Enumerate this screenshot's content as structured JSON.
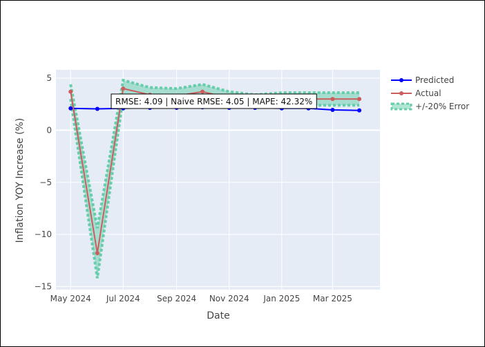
{
  "chart_data": {
    "type": "line",
    "title": "",
    "xlabel": "Date",
    "ylabel": "Inflation YOY Increase (%)",
    "x": [
      "2024-05-01",
      "2024-06-01",
      "2024-07-01",
      "2024-08-01",
      "2024-09-01",
      "2024-10-01",
      "2024-11-01",
      "2024-12-01",
      "2025-01-01",
      "2025-02-01",
      "2025-03-01",
      "2025-04-01"
    ],
    "xlim": [
      "2024-04-14",
      "2025-04-25"
    ],
    "ylim": [
      -15.3,
      5.8
    ],
    "x_ticks": [
      {
        "date": "2024-05-01",
        "label": "May 2024"
      },
      {
        "date": "2024-07-01",
        "label": "Jul 2024"
      },
      {
        "date": "2024-09-01",
        "label": "Sep 2024"
      },
      {
        "date": "2024-11-01",
        "label": "Nov 2024"
      },
      {
        "date": "2025-01-01",
        "label": "Jan 2025"
      },
      {
        "date": "2025-03-01",
        "label": "Mar 2025"
      }
    ],
    "y_ticks": [
      {
        "value": 5,
        "label": "5"
      },
      {
        "value": 0,
        "label": "0"
      },
      {
        "value": -5,
        "label": "−5"
      },
      {
        "value": -10,
        "label": "−10"
      },
      {
        "value": -15,
        "label": "−15"
      }
    ],
    "grid": true,
    "legend_position": "right",
    "series": [
      {
        "name": "Predicted",
        "color": "#0000ff",
        "values": [
          2.1,
          2.05,
          2.1,
          2.15,
          2.15,
          2.2,
          2.15,
          2.15,
          2.1,
          2.1,
          1.95,
          1.9
        ]
      },
      {
        "name": "Actual",
        "color": "#cd5c5c",
        "values": [
          3.7,
          -11.8,
          4.0,
          3.4,
          3.3,
          3.7,
          3.1,
          2.8,
          2.8,
          3.0,
          3.0,
          3.0
        ]
      }
    ],
    "error_band": {
      "name": "+/-20% Error",
      "color": "#66cdaa",
      "upper": [
        4.4,
        -9.4,
        4.8,
        4.1,
        4.0,
        4.4,
        3.7,
        3.4,
        3.6,
        3.6,
        3.6,
        3.6
      ],
      "lower": [
        3.0,
        -14.2,
        3.2,
        2.7,
        2.6,
        3.0,
        2.5,
        2.2,
        2.2,
        2.4,
        2.4,
        2.4
      ]
    },
    "annotation": "RMSE: 4.09 | Naive RMSE: 4.05 | MAPE: 42.32%"
  }
}
